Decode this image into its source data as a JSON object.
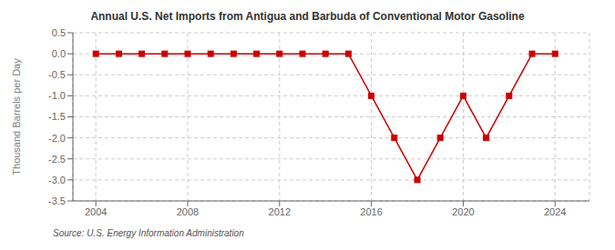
{
  "chart_data": {
    "type": "line",
    "title": "Annual U.S. Net Imports from Antigua and Barbuda of Conventional Motor Gasoline",
    "ylabel": "Thousand Barrels per Day",
    "source": "Source: U.S. Energy Information Administration",
    "color": "#cc0000",
    "marker": "square",
    "line_style": "solid",
    "grid": true,
    "xlim": [
      2003,
      2025.5
    ],
    "xticks": [
      2004,
      2008,
      2012,
      2016,
      2020,
      2024
    ],
    "ylim": [
      -3.5,
      0.5
    ],
    "yticks": [
      0.5,
      {
        "value": 0,
        "label": "0.0"
      },
      -0.5,
      {
        "value": -1,
        "label": "-1.0"
      },
      -1.5,
      {
        "value": -2,
        "label": "-2.0"
      },
      -2.5,
      {
        "value": -3,
        "label": "-3.0"
      },
      -3.5
    ],
    "x": [
      2004,
      2005,
      2006,
      2007,
      2008,
      2009,
      2010,
      2011,
      2012,
      2013,
      2014,
      2015,
      2016,
      2017,
      2018,
      2019,
      2020,
      2021,
      2022,
      2023,
      2024
    ],
    "values": [
      0.0,
      0.0,
      0.0,
      0.0,
      0.0,
      0.0,
      0.0,
      0.0,
      0.0,
      0.0,
      0.0,
      0.0,
      -1.0,
      -2.0,
      -3.0,
      -2.0,
      -1.0,
      -2.0,
      -1.0,
      0.0,
      0.0
    ]
  }
}
